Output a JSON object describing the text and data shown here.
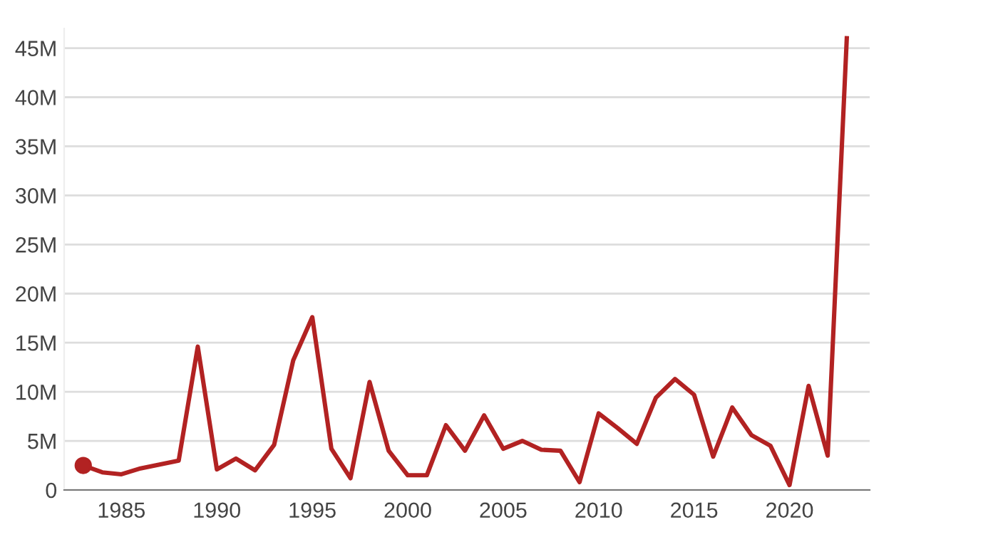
{
  "chart_data": {
    "type": "line",
    "x": [
      1983,
      1984,
      1985,
      1986,
      1987,
      1988,
      1989,
      1990,
      1991,
      1992,
      1993,
      1994,
      1995,
      1996,
      1997,
      1998,
      1999,
      2000,
      2001,
      2002,
      2003,
      2004,
      2005,
      2006,
      2007,
      2008,
      2009,
      2010,
      2011,
      2012,
      2013,
      2014,
      2015,
      2016,
      2017,
      2018,
      2019,
      2020,
      2021,
      2022,
      2023
    ],
    "series": [
      {
        "color": "#b22222",
        "values": [
          2.5,
          1.8,
          1.6,
          2.2,
          2.6,
          3.0,
          14.6,
          2.1,
          3.2,
          2.0,
          4.6,
          13.2,
          17.6,
          4.2,
          1.2,
          11.0,
          4.0,
          1.5,
          1.5,
          6.6,
          4.0,
          7.6,
          4.2,
          5.0,
          4.1,
          4.0,
          0.8,
          7.8,
          6.3,
          4.7,
          9.4,
          11.3,
          9.7,
          3.4,
          8.4,
          5.6,
          4.5,
          0.5,
          10.6,
          3.5,
          46
        ]
      },
      {
        "type": "scatter",
        "color": "#b22222",
        "x": [
          1983
        ],
        "values": [
          2.5
        ],
        "marker": "circle"
      }
    ],
    "xlim": [
      1982,
      2024.2
    ],
    "xticks": [
      1985,
      1990,
      1995,
      2000,
      2005,
      2010,
      2015,
      2020
    ],
    "ylim": [
      0,
      47
    ],
    "yticks": [
      {
        "value": 0,
        "label": "0"
      },
      {
        "value": 5,
        "label": "5M"
      },
      {
        "value": 10,
        "label": "10M"
      },
      {
        "value": 15,
        "label": "15M"
      },
      {
        "value": 20,
        "label": "20M"
      },
      {
        "value": 25,
        "label": "25M"
      },
      {
        "value": 30,
        "label": "30M"
      },
      {
        "value": 35,
        "label": "35M"
      },
      {
        "value": 40,
        "label": "40M"
      },
      {
        "value": 45,
        "label": "45M"
      }
    ],
    "grid": "y",
    "marker": "none"
  }
}
